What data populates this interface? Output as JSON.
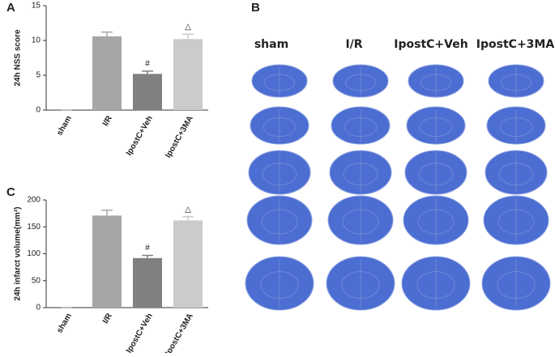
{
  "chart_data": [
    {
      "type": "bar",
      "panel": "A",
      "ylabel": "24h NSS score",
      "categories": [
        "sham",
        "I/R",
        "IpostC+Veh",
        "IpostC+3MA"
      ],
      "values": [
        0,
        10.6,
        5.2,
        10.2
      ],
      "errors": [
        0,
        0.6,
        0.4,
        0.7
      ],
      "colors": [
        "#a6a6a6",
        "#a6a6a6",
        "#808080",
        "#cbcbcb"
      ],
      "annotations": [
        null,
        null,
        "#",
        "△"
      ],
      "ylim": [
        0,
        15
      ],
      "yticks": [
        0,
        5,
        10,
        15
      ]
    },
    {
      "type": "bar",
      "panel": "C",
      "ylabel": "24h infarct volume(mm³)",
      "categories": [
        "sham",
        "I/R",
        "IpostC+Veh",
        "IpostC+3MA"
      ],
      "values": [
        0,
        171,
        92,
        162
      ],
      "errors": [
        0,
        10,
        5,
        7
      ],
      "colors": [
        "#a6a6a6",
        "#a6a6a6",
        "#808080",
        "#cbcbcb"
      ],
      "annotations": [
        null,
        null,
        "#",
        "△"
      ],
      "ylim": [
        0,
        200
      ],
      "yticks": [
        0,
        50,
        100,
        150,
        200
      ]
    }
  ],
  "panel_b": {
    "label": "B",
    "columns": [
      "sham",
      "I/R",
      "IpostC+Veh",
      "IpostC+3MA"
    ]
  }
}
